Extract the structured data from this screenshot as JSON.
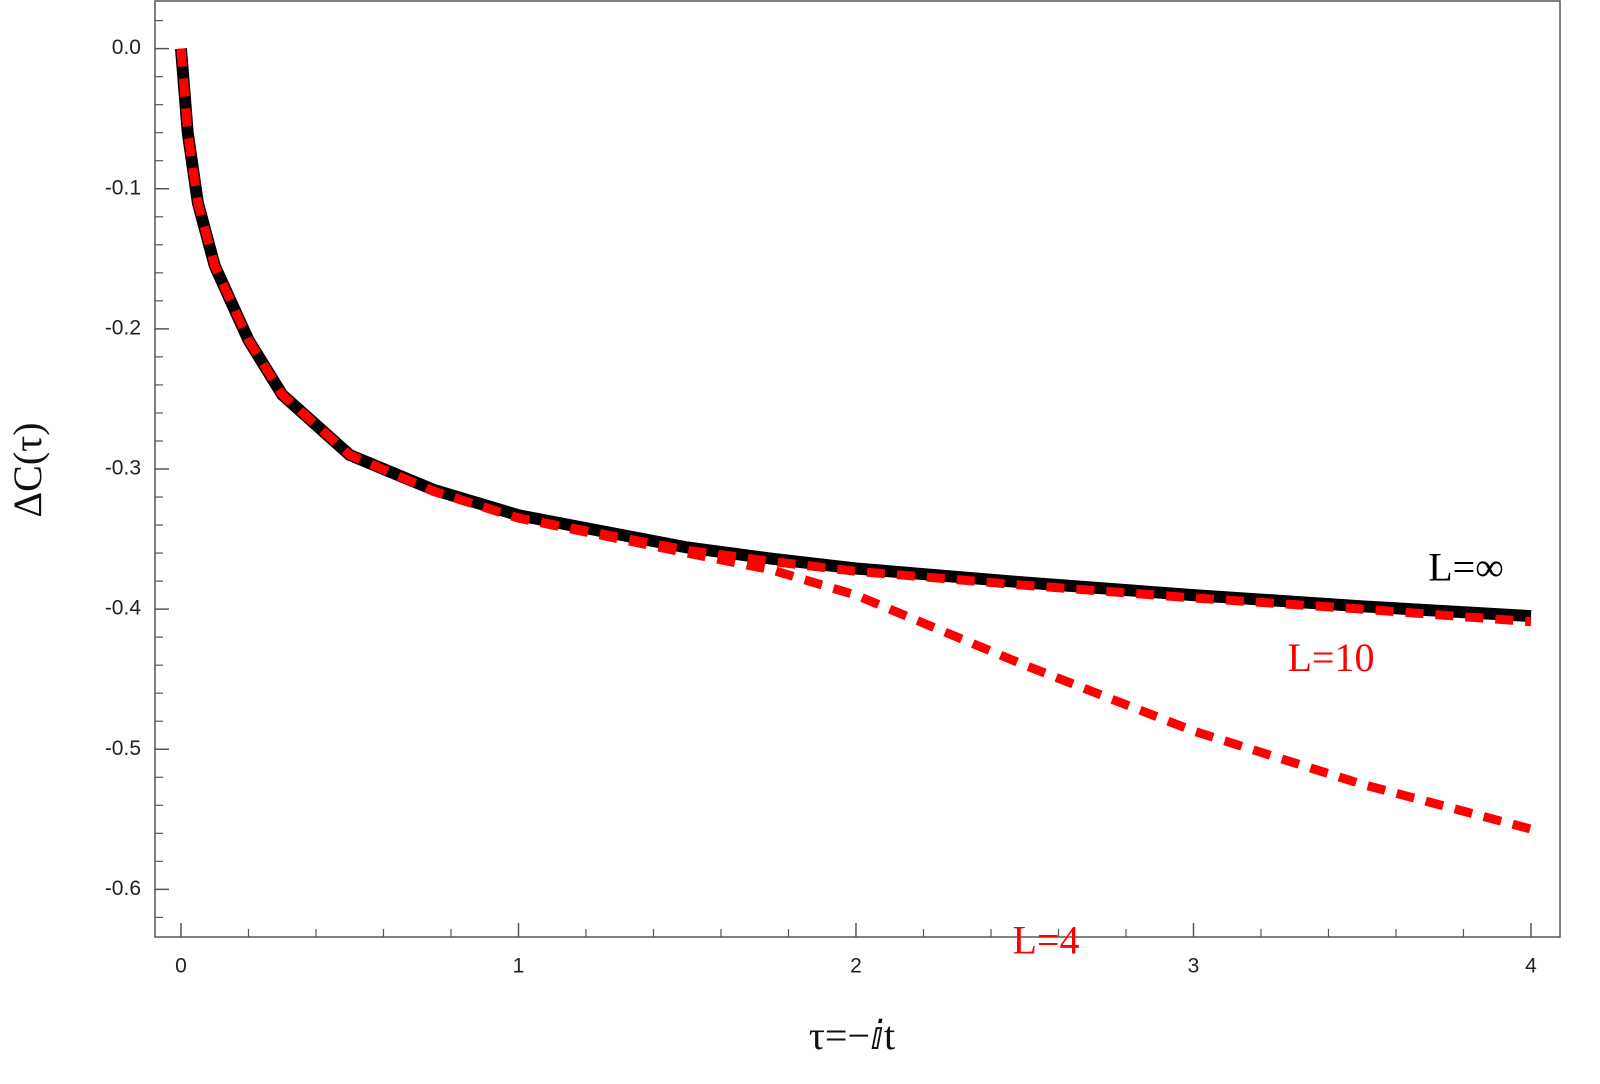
{
  "chart_data": {
    "type": "line",
    "xlabel": "τ=−ⅈt",
    "ylabel": "ΔC(τ)",
    "x": [
      0,
      0.02,
      0.05,
      0.1,
      0.2,
      0.3,
      0.5,
      0.75,
      1,
      1.5,
      1.75,
      2,
      2.5,
      3,
      3.5,
      4
    ],
    "series": [
      {
        "name": "L=∞",
        "color": "#000000",
        "dashed": false,
        "values": [
          0,
          -0.06,
          -0.11,
          -0.155,
          -0.208,
          -0.247,
          -0.29,
          -0.315,
          -0.333,
          -0.356,
          -0.364,
          -0.371,
          -0.381,
          -0.39,
          -0.398,
          -0.405
        ]
      },
      {
        "name": "L=10",
        "color": "#ff0000",
        "dashed": true,
        "values": [
          0,
          -0.06,
          -0.11,
          -0.155,
          -0.208,
          -0.247,
          -0.29,
          -0.316,
          -0.335,
          -0.358,
          -0.366,
          -0.373,
          -0.383,
          -0.392,
          -0.4,
          -0.409
        ]
      },
      {
        "name": "L=4",
        "color": "#ff0000",
        "dashed": true,
        "values": [
          0,
          -0.06,
          -0.11,
          -0.155,
          -0.208,
          -0.247,
          -0.29,
          -0.316,
          -0.335,
          -0.36,
          -0.372,
          -0.39,
          -0.44,
          -0.487,
          -0.525,
          -0.557
        ]
      }
    ],
    "xlim": [
      -0.077,
      4.086
    ],
    "ylim": [
      -0.634,
      0.034
    ],
    "xticks": [
      0,
      1,
      2,
      3,
      4
    ],
    "yticks": [
      {
        "value": 0,
        "label": "0.0"
      },
      -0.1,
      -0.2,
      -0.3,
      -0.4,
      -0.5,
      -0.6
    ],
    "xminorticks": [
      0.2,
      0.4,
      0.6,
      0.8,
      1.2,
      1.4,
      1.6,
      1.8,
      2.2,
      2.4,
      2.6,
      2.8,
      3.2,
      3.4,
      3.6,
      3.8
    ],
    "yminorticks": [
      0.02,
      -0.02,
      -0.04,
      -0.06,
      -0.08,
      -0.12,
      -0.14,
      -0.16,
      -0.18,
      -0.22,
      -0.24,
      -0.26,
      -0.28,
      -0.32,
      -0.34,
      -0.36,
      -0.38,
      -0.42,
      -0.44,
      -0.46,
      -0.48,
      -0.52,
      -0.54,
      -0.56,
      -0.58,
      -0.62
    ]
  }
}
